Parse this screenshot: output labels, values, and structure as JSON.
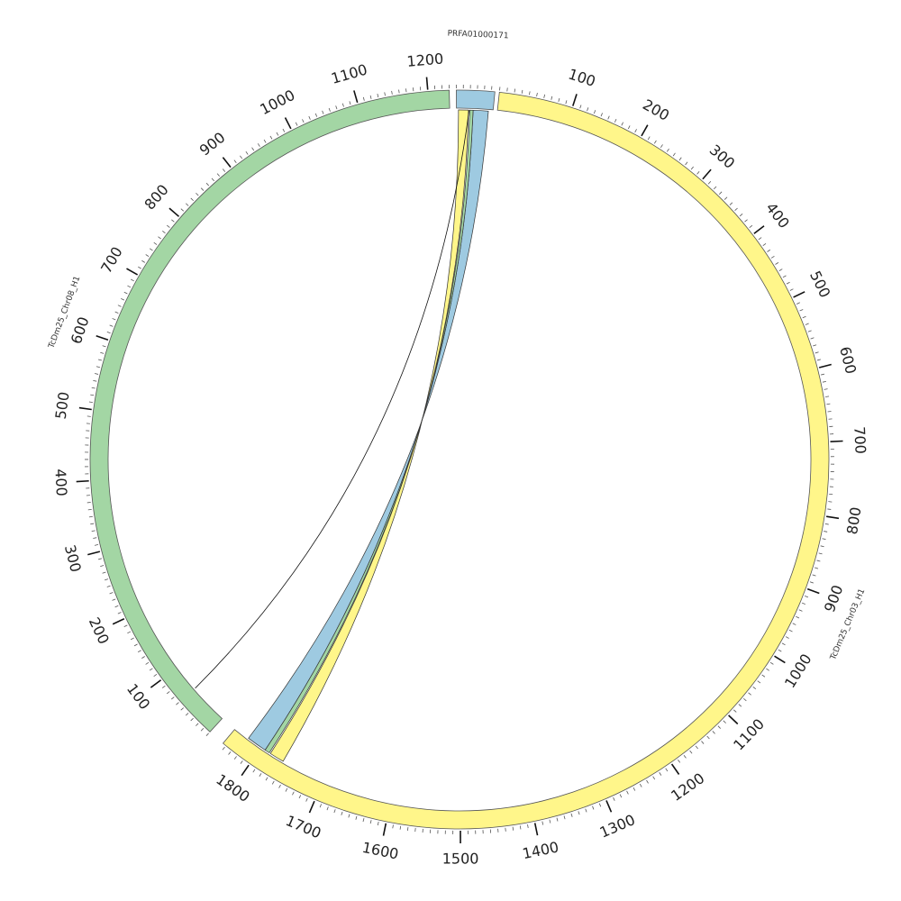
{
  "chromosomes": [
    {
      "id": "chr08",
      "label": "TcDm25_Chr08_H1",
      "length": 1230,
      "color": "#a3d6a4",
      "tick_labels": [
        "100",
        "200",
        "300",
        "400",
        "500",
        "600",
        "700",
        "800",
        "900",
        "1000",
        "1100",
        "1200"
      ]
    },
    {
      "id": "prfa",
      "label": "PRFA01000171",
      "length": 55,
      "color": "#9ecae1",
      "tick_labels": []
    },
    {
      "id": "chr03",
      "label": "TcDm25_Chr03_H1",
      "length": 1845,
      "color": "#fff68a",
      "tick_labels": [
        "100",
        "200",
        "300",
        "400",
        "500",
        "600",
        "700",
        "800",
        "900",
        "1000",
        "1100",
        "1200",
        "1300",
        "1400",
        "1500",
        "1600",
        "1700",
        "1800"
      ]
    }
  ],
  "links": [
    {
      "from": "prfa",
      "from_start": 25,
      "from_end": 48,
      "to": "chr03",
      "to_start": 1793,
      "to_end": 1822,
      "color": "#9ecae1"
    },
    {
      "from": "prfa",
      "from_start": 20,
      "from_end": 25,
      "to": "chr03",
      "to_start": 1786,
      "to_end": 1793,
      "color": "#a3d6a4"
    },
    {
      "from": "prfa",
      "from_start": 3,
      "from_end": 18,
      "to": "chr03",
      "to_start": 1763,
      "to_end": 1784,
      "color": "#fff68a"
    },
    {
      "from": "prfa",
      "from_start": 19,
      "from_end": 19,
      "to": "chr08",
      "to_start": 60,
      "to_end": 60,
      "color": "#ffffff"
    }
  ]
}
